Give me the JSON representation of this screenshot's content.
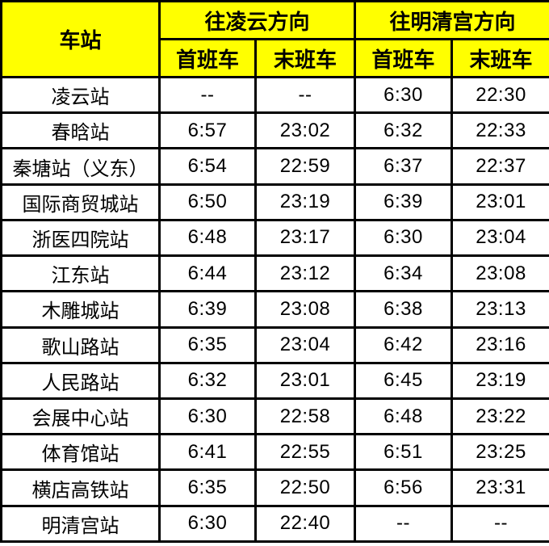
{
  "colors": {
    "header_background": "#FFFF00",
    "border": "#000000",
    "text": "#000000",
    "body_background": "#FFFFFF"
  },
  "table": {
    "header": {
      "station_column": "车站",
      "directions": [
        "往凌云方向",
        "往明清宫方向"
      ],
      "sub_columns": [
        "首班车",
        "末班车",
        "首班车",
        "末班车"
      ]
    },
    "rows": [
      {
        "station": "凌云站",
        "times": [
          "--",
          "--",
          "6:30",
          "22:30"
        ]
      },
      {
        "station": "春晗站",
        "times": [
          "6:57",
          "23:02",
          "6:32",
          "22:33"
        ]
      },
      {
        "station": "秦塘站（义东）",
        "times": [
          "6:54",
          "22:59",
          "6:37",
          "22:37"
        ]
      },
      {
        "station": "国际商贸城站",
        "times": [
          "6:50",
          "23:19",
          "6:39",
          "23:01"
        ]
      },
      {
        "station": "浙医四院站",
        "times": [
          "6:48",
          "23:17",
          "6:30",
          "23:04"
        ]
      },
      {
        "station": "江东站",
        "times": [
          "6:44",
          "23:12",
          "6:34",
          "23:08"
        ]
      },
      {
        "station": "木雕城站",
        "times": [
          "6:39",
          "23:08",
          "6:38",
          "23:13"
        ]
      },
      {
        "station": "歌山路站",
        "times": [
          "6:35",
          "23:04",
          "6:42",
          "23:16"
        ]
      },
      {
        "station": "人民路站",
        "times": [
          "6:32",
          "23:01",
          "6:45",
          "23:19"
        ]
      },
      {
        "station": "会展中心站",
        "times": [
          "6:30",
          "22:58",
          "6:48",
          "23:22"
        ]
      },
      {
        "station": "体育馆站",
        "times": [
          "6:41",
          "22:55",
          "6:51",
          "23:25"
        ]
      },
      {
        "station": "横店高铁站",
        "times": [
          "6:35",
          "22:50",
          "6:56",
          "23:31"
        ]
      },
      {
        "station": "明清宫站",
        "times": [
          "6:30",
          "22:40",
          "--",
          "--"
        ]
      }
    ]
  }
}
